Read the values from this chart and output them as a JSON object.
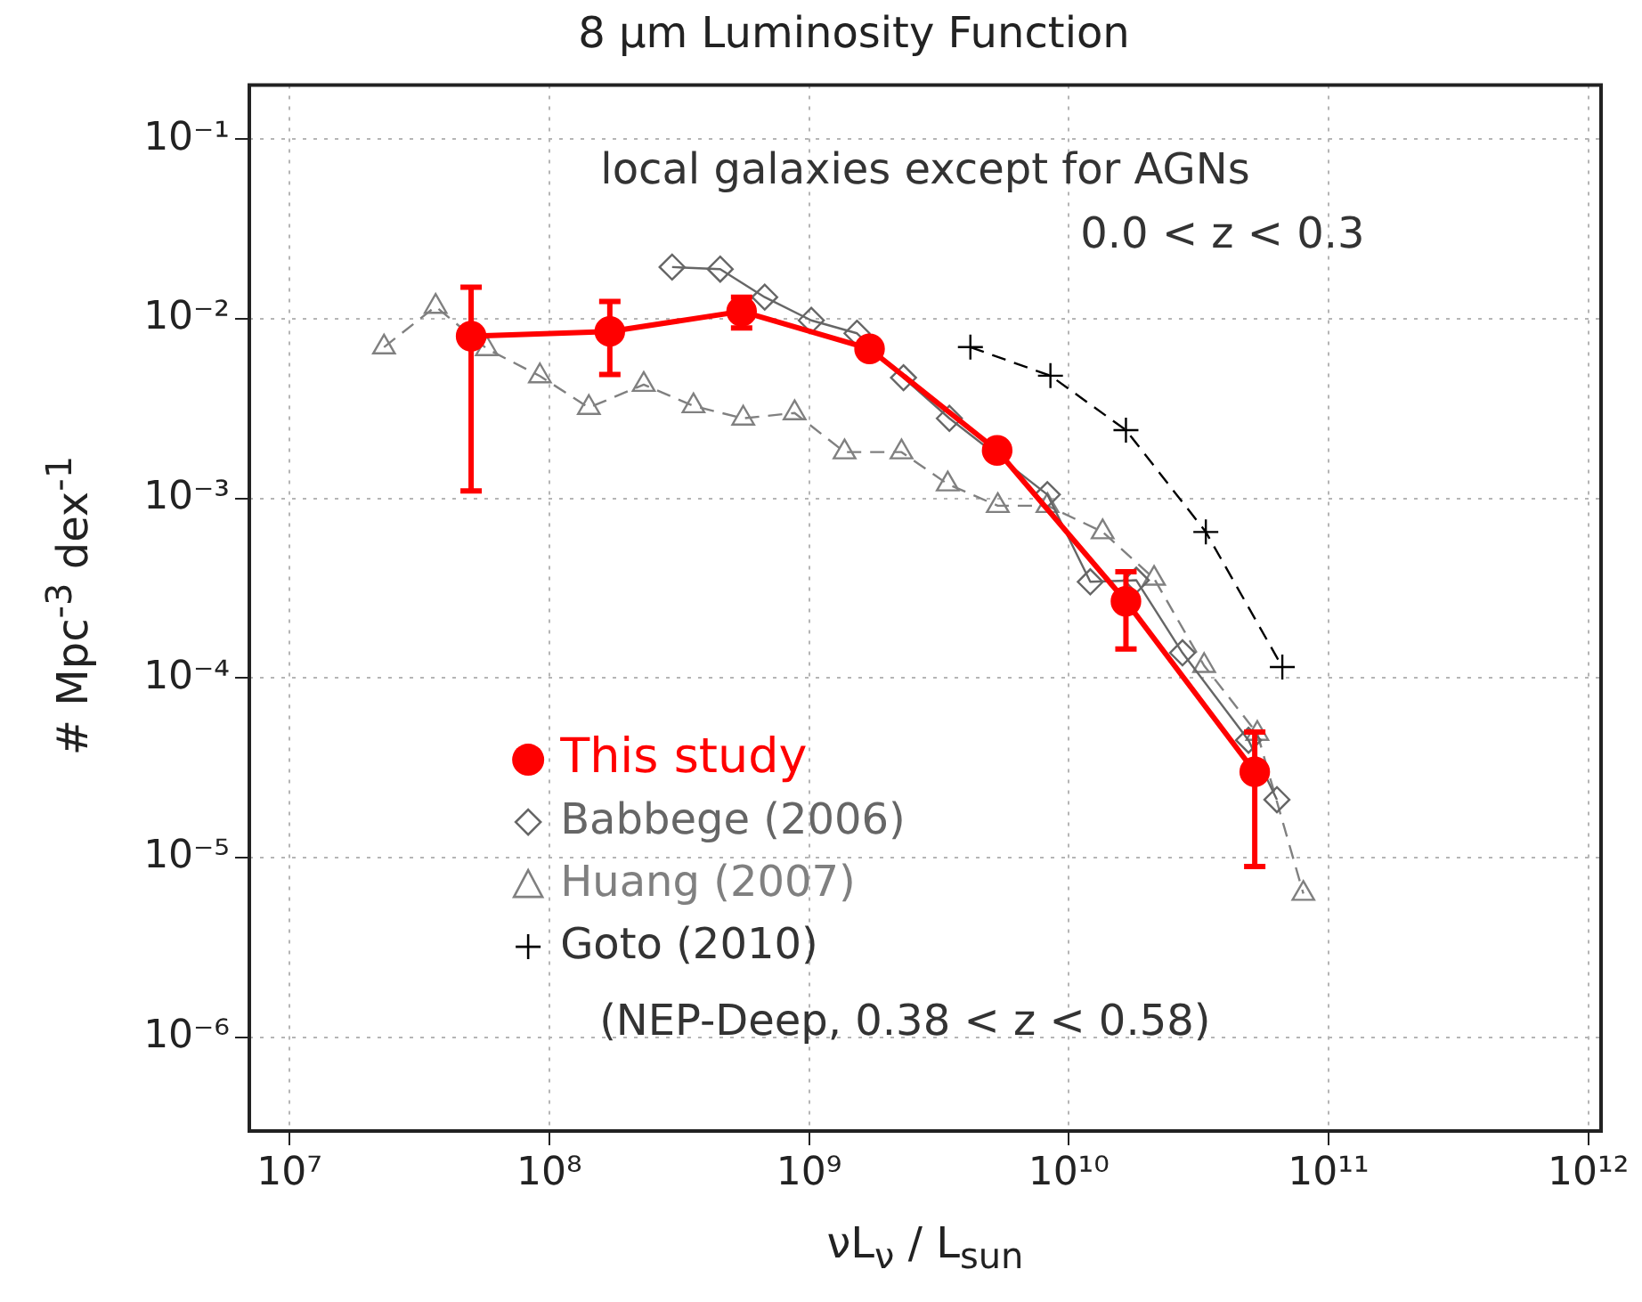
{
  "chart_data": {
    "type": "line",
    "title": "8 μm Luminosity Function",
    "xlabel": "νL$_{ν}$ / L$_{sun}$",
    "ylabel": "# Mpc$^{-3}$ dex$^{-1}$",
    "log": "xy",
    "grid": true,
    "legend": "bottom left",
    "xlim": [
      7000000.0,
      1120000000000.0
    ],
    "ylim": [
      3e-07,
      0.2
    ],
    "xticks": [
      {
        "value": 10000000.0,
        "label": "10⁷"
      },
      {
        "value": 100000000.0,
        "label": "10⁸"
      },
      {
        "value": 1000000000.0,
        "label": "10⁹"
      },
      {
        "value": 10000000000.0,
        "label": "10¹⁰"
      },
      {
        "value": 100000000000.0,
        "label": "10¹¹"
      },
      {
        "value": 1000000000000.0,
        "label": "10¹²"
      }
    ],
    "yticks": [
      {
        "value": 1e-06,
        "label": "10⁻⁶"
      },
      {
        "value": 1e-05,
        "label": "10⁻⁵"
      },
      {
        "value": 0.0001,
        "label": "10⁻⁴"
      },
      {
        "value": 0.001,
        "label": "10⁻³"
      },
      {
        "value": 0.01,
        "label": "10⁻²"
      },
      {
        "value": 0.1,
        "label": "10⁻¹"
      }
    ],
    "annotations": [
      "local galaxies except for AGNs",
      "0.0 < z < 0.3",
      "(NEP-Deep, 0.38 < z < 0.58)"
    ],
    "series": [
      {
        "name": "This study",
        "color": "#ff0000",
        "marker": "circle",
        "line_style": "solid",
        "x": [
          50000000.0,
          171000000.0,
          550000000.0,
          1710000000.0,
          5300000000.0,
          16600000000.0,
          52000000000.0
        ],
        "values": [
          0.008,
          0.0085,
          0.011,
          0.0068,
          0.00185,
          0.000267,
          3e-05
        ],
        "errors": [
          [
            0.0011,
            0.015
          ],
          [
            0.0049,
            0.0125
          ],
          [
            0.0089,
            0.0132
          ],
          null,
          null,
          [
            0.000145,
            0.00039
          ],
          [
            8.9e-06,
            5e-05
          ]
        ]
      },
      {
        "name": "Babbege (2006)",
        "color": "#666666",
        "marker": "diamond",
        "line_style": "solid",
        "x": [
          297000000.0,
          455000000.0,
          675000000.0,
          1020000000.0,
          1530000000.0,
          2310000000.0,
          3470000000.0,
          8270000000.0,
          12100000000.0,
          18200000000.0,
          27400000000.0,
          49200000000.0,
          63300000000.0
        ],
        "values": [
          0.0194,
          0.0189,
          0.0132,
          0.0098,
          0.0083,
          0.0047,
          0.00279,
          0.00105,
          0.000343,
          0.00035,
          0.000138,
          4.5e-05,
          2.1e-05
        ]
      },
      {
        "name": "Huang (2007)",
        "color": "#808080",
        "marker": "triangle",
        "line_style": "dashed",
        "x": [
          23100000.0,
          36500000.0,
          57500000.0,
          92000000.0,
          142000000.0,
          231000000.0,
          359000000.0,
          558000000.0,
          880000000.0,
          1370000000.0,
          2270000000.0,
          3420000000.0,
          5330000000.0,
          8280000000.0,
          13500000000.0,
          21300000000.0,
          33200000000.0,
          53200000000.0,
          80000000000.0
        ],
        "values": [
          0.00695,
          0.0117,
          0.0068,
          0.0048,
          0.0032,
          0.0043,
          0.00327,
          0.00279,
          0.00299,
          0.00181,
          0.00181,
          0.0012,
          0.00091,
          0.00091,
          0.00065,
          0.000358,
          0.000117,
          4.9e-05,
          6.3e-06
        ]
      },
      {
        "name": "Goto (2010)",
        "color": "#000000",
        "marker": "cross",
        "line_style": "dashed",
        "x": [
          4180000000.0,
          8500000000.0,
          16600000000.0,
          33700000000.0,
          66400000000.0
        ],
        "values": [
          0.00695,
          0.00482,
          0.0024,
          0.00065,
          0.000115
        ]
      }
    ]
  }
}
